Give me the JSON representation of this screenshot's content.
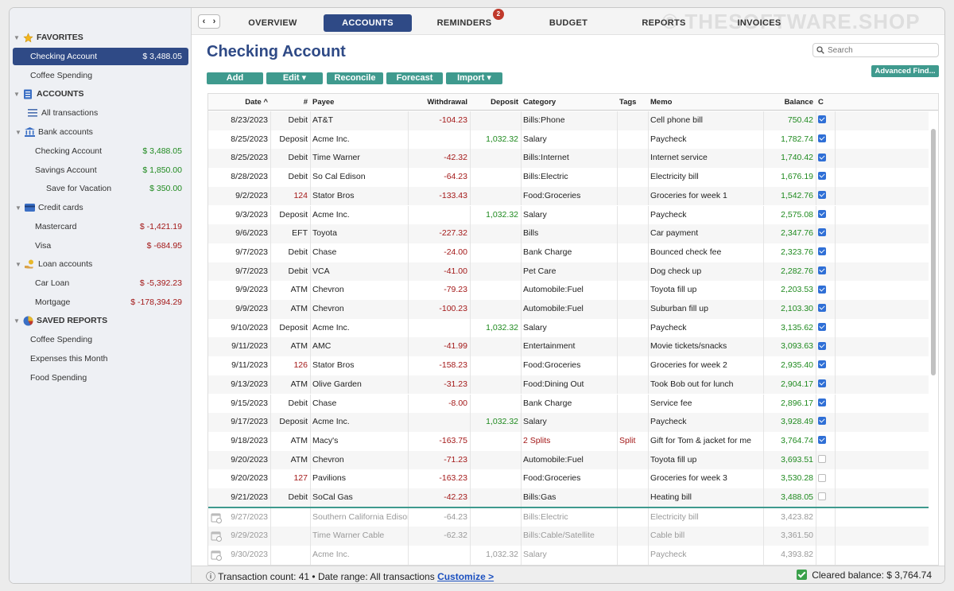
{
  "sidebar": {
    "favorites_title": "FAVORITES",
    "fav": [
      {
        "label": "Checking Account",
        "amount": "$ 3,488.05"
      },
      {
        "label": "Coffee Spending",
        "amount": ""
      }
    ],
    "accounts_title": "ACCOUNTS",
    "all_tx": "All transactions",
    "bank_title": "Bank accounts",
    "bank": [
      {
        "label": "Checking Account",
        "amount": "$ 3,488.05"
      },
      {
        "label": "Savings Account",
        "amount": "$ 1,850.00"
      },
      {
        "label": "Save for Vacation",
        "amount": "$ 350.00"
      }
    ],
    "cc_title": "Credit cards",
    "cc": [
      {
        "label": "Mastercard",
        "amount": "$ -1,421.19"
      },
      {
        "label": "Visa",
        "amount": "$ -684.95"
      }
    ],
    "loan_title": "Loan accounts",
    "loan": [
      {
        "label": "Car Loan",
        "amount": "$ -5,392.23"
      },
      {
        "label": "Mortgage",
        "amount": "$ -178,394.29"
      }
    ],
    "reports_title": "SAVED REPORTS",
    "reports": [
      "Coffee Spending",
      "Expenses this Month",
      "Food Spending"
    ]
  },
  "tabs": {
    "nav_back": "‹",
    "nav_fwd": "›",
    "items": [
      "OVERVIEW",
      "ACCOUNTS",
      "REMINDERS",
      "BUDGET",
      "REPORTS",
      "INVOICES"
    ],
    "reminders_badge": "2",
    "watermark": "© THESOFTWARE.SHOP"
  },
  "header": {
    "title": "Checking Account",
    "search_placeholder": "Search",
    "advanced": "Advanced Find...",
    "buttons": [
      "Add",
      "Edit ▾",
      "Reconcile",
      "Forecast",
      "Import ▾"
    ]
  },
  "table": {
    "columns": [
      "Date ^",
      "#",
      "Payee",
      "Withdrawal",
      "Deposit",
      "Category",
      "Tags",
      "Memo",
      "Balance",
      "C"
    ],
    "rows": [
      [
        "8/23/2023",
        "Debit",
        "AT&T",
        "-104.23",
        "",
        "Bills:Phone",
        "",
        "Cell phone bill",
        "750.42",
        "on"
      ],
      [
        "8/25/2023",
        "Deposit",
        "Acme Inc.",
        "",
        "1,032.32",
        "Salary",
        "",
        "Paycheck",
        "1,782.74",
        "on"
      ],
      [
        "8/25/2023",
        "Debit",
        "Time Warner",
        "-42.32",
        "",
        "Bills:Internet",
        "",
        "Internet service",
        "1,740.42",
        "on"
      ],
      [
        "8/28/2023",
        "Debit",
        "So Cal Edison",
        "-64.23",
        "",
        "Bills:Electric",
        "",
        "Electricity bill",
        "1,676.19",
        "on"
      ],
      [
        "9/2/2023",
        "124",
        "Stator Bros",
        "-133.43",
        "",
        "Food:Groceries",
        "",
        "Groceries for week 1",
        "1,542.76",
        "on"
      ],
      [
        "9/3/2023",
        "Deposit",
        "Acme Inc.",
        "",
        "1,032.32",
        "Salary",
        "",
        "Paycheck",
        "2,575.08",
        "on"
      ],
      [
        "9/6/2023",
        "EFT",
        "Toyota",
        "-227.32",
        "",
        "Bills",
        "",
        "Car payment",
        "2,347.76",
        "on"
      ],
      [
        "9/7/2023",
        "Debit",
        "Chase",
        "-24.00",
        "",
        "Bank Charge",
        "",
        "Bounced check fee",
        "2,323.76",
        "on"
      ],
      [
        "9/7/2023",
        "Debit",
        "VCA",
        "-41.00",
        "",
        "Pet Care",
        "",
        "Dog check up",
        "2,282.76",
        "on"
      ],
      [
        "9/9/2023",
        "ATM",
        "Chevron",
        "-79.23",
        "",
        "Automobile:Fuel",
        "",
        "Toyota fill up",
        "2,203.53",
        "on"
      ],
      [
        "9/9/2023",
        "ATM",
        "Chevron",
        "-100.23",
        "",
        "Automobile:Fuel",
        "",
        "Suburban fill up",
        "2,103.30",
        "on"
      ],
      [
        "9/10/2023",
        "Deposit",
        "Acme Inc.",
        "",
        "1,032.32",
        "Salary",
        "",
        "Paycheck",
        "3,135.62",
        "on"
      ],
      [
        "9/11/2023",
        "ATM",
        "AMC",
        "-41.99",
        "",
        "Entertainment",
        "",
        "Movie tickets/snacks",
        "3,093.63",
        "on"
      ],
      [
        "9/11/2023",
        "126",
        "Stator Bros",
        "-158.23",
        "",
        "Food:Groceries",
        "",
        "Groceries for week 2",
        "2,935.40",
        "on"
      ],
      [
        "9/13/2023",
        "ATM",
        "Olive Garden",
        "-31.23",
        "",
        "Food:Dining Out",
        "",
        "Took Bob out for lunch",
        "2,904.17",
        "on"
      ],
      [
        "9/15/2023",
        "Debit",
        "Chase",
        "-8.00",
        "",
        "Bank Charge",
        "",
        "Service fee",
        "2,896.17",
        "on"
      ],
      [
        "9/17/2023",
        "Deposit",
        "Acme Inc.",
        "",
        "1,032.32",
        "Salary",
        "",
        "Paycheck",
        "3,928.49",
        "on"
      ],
      [
        "9/18/2023",
        "ATM",
        "Macy's",
        "-163.75",
        "",
        "2 Splits",
        "Split",
        "Gift for Tom & jacket for me",
        "3,764.74",
        "on"
      ],
      [
        "9/20/2023",
        "ATM",
        "Chevron",
        "-71.23",
        "",
        "Automobile:Fuel",
        "",
        "Toyota fill up",
        "3,693.51",
        "off"
      ],
      [
        "9/20/2023",
        "127",
        "Pavilions",
        "-163.23",
        "",
        "Food:Groceries",
        "",
        "Groceries for week 3",
        "3,530.28",
        "off"
      ],
      [
        "9/21/2023",
        "Debit",
        "SoCal Gas",
        "-42.23",
        "",
        "Bills:Gas",
        "",
        "Heating bill",
        "3,488.05",
        "off"
      ]
    ],
    "scheduled": [
      [
        "9/27/2023",
        "",
        "Southern California Edison",
        "-64.23",
        "",
        "Bills:Electric",
        "",
        "Electricity bill",
        "3,423.82",
        ""
      ],
      [
        "9/29/2023",
        "",
        "Time Warner Cable",
        "-62.32",
        "",
        "Bills:Cable/Satellite",
        "",
        "Cable bill",
        "3,361.50",
        ""
      ],
      [
        "9/30/2023",
        "",
        "Acme Inc.",
        "",
        "1,032.32",
        "Salary",
        "",
        "Paycheck",
        "4,393.82",
        ""
      ]
    ]
  },
  "status": {
    "info_icon": "ⓘ",
    "text": "Transaction count: 41 • Date range: All transactions",
    "customize": "Customize >",
    "cleared": "Cleared balance: $ 3,764.74"
  }
}
